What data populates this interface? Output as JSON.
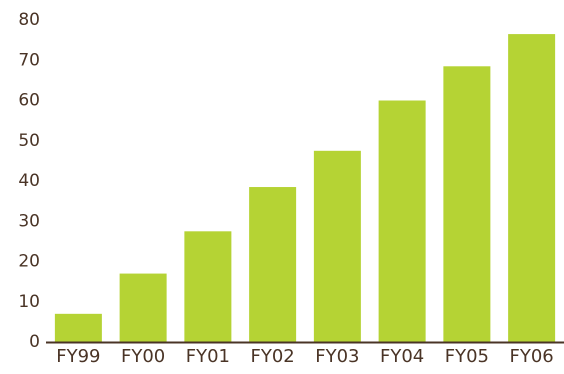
{
  "chart_data": {
    "type": "bar",
    "title": "",
    "xlabel": "",
    "ylabel": "",
    "categories": [
      "FY99",
      "FY00",
      "FY01",
      "FY02",
      "FY03",
      "FY04",
      "FY05",
      "FY06"
    ],
    "values": [
      7,
      17,
      27.5,
      38.5,
      47.5,
      60,
      68.5,
      76.5
    ],
    "ylim": [
      0,
      80
    ],
    "yticks": [
      0,
      10,
      20,
      30,
      40,
      50,
      60,
      70,
      80
    ],
    "grid": false,
    "legend": "none",
    "colors": {
      "bar": "#b5d334",
      "axis": "#4a3426",
      "text": "#4a3426"
    }
  }
}
